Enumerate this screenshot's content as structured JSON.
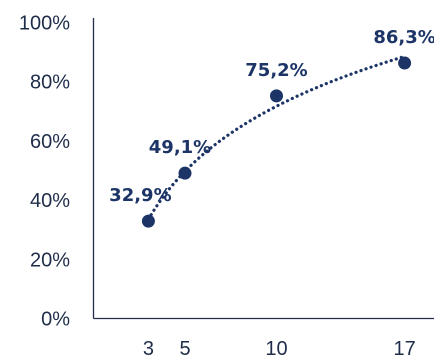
{
  "chart_data": {
    "type": "scatter",
    "title": "",
    "xlabel": "",
    "ylabel": "",
    "x_ticks": [
      3,
      5,
      10,
      17
    ],
    "y_ticks": [
      "0%",
      "20%",
      "40%",
      "60%",
      "80%",
      "100%"
    ],
    "ylim": [
      0,
      100
    ],
    "xlim": [
      0,
      19
    ],
    "grid": false,
    "trendline": "logarithmic (dotted)",
    "points": [
      {
        "x": 3,
        "y": 32.9,
        "label": "32,9%"
      },
      {
        "x": 5,
        "y": 49.1,
        "label": "49,1%"
      },
      {
        "x": 10,
        "y": 75.2,
        "label": "75,2%"
      },
      {
        "x": 17,
        "y": 86.3,
        "label": "86,3%"
      }
    ],
    "colors": {
      "marker": "#1c3566",
      "axis": "#1f2d4a",
      "label": "#1c3566"
    }
  }
}
